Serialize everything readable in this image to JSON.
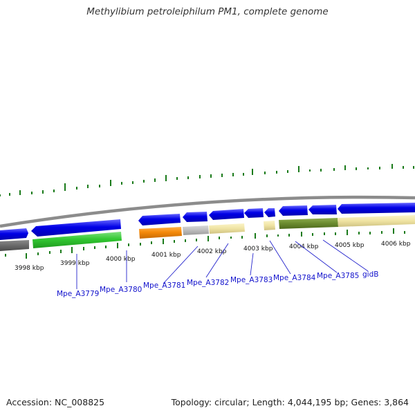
{
  "title": "Methylibium petroleiphilum PM1, complete genome",
  "footer": {
    "accession": "Accession: NC_008825",
    "topology": "Topology: circular; Length: 4,044,195 bp; Genes: 3,864"
  },
  "scale_labels": [
    "3998 kbp",
    "3999 kbp",
    "4000 kbp",
    "4001 kbp",
    "4002 kbp",
    "4003 kbp",
    "4004 kbp",
    "4005 kbp",
    "4006 kbp"
  ],
  "gene_labels": [
    "Mpe_A3779",
    "Mpe_A3780",
    "Mpe_A3781",
    "Mpe_A3782",
    "Mpe_A3783",
    "Mpe_A3784",
    "Mpe_A3785",
    "gidB"
  ],
  "colors": {
    "forward_strand": "#0000dd",
    "backbone": "#888888",
    "tick": "#1a7a1a",
    "label_link": "#2222cc"
  }
}
